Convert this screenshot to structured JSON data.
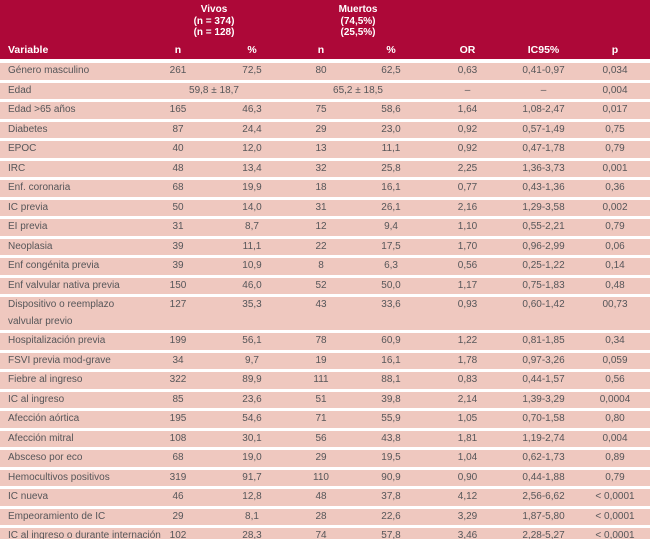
{
  "colors": {
    "header_bg": "#ad0838",
    "header_text": "#ffffff",
    "row_bg": "#efc8bf",
    "row_text": "#565659",
    "gap": "#ffffff"
  },
  "table": {
    "header": {
      "variable_label": "Variable",
      "group_vivos": "Vivos\n(n = 374)\n(n = 128)",
      "group_muertos": "Muertos\n(74,5%)\n(25,5%)",
      "col_n_vivos": "n",
      "col_pct_vivos": "%",
      "col_n_muertos": "n",
      "col_pct_muertos": "%",
      "col_or": "OR",
      "col_ic95": "IC95%",
      "col_p": "p"
    },
    "rows": [
      {
        "label": "Género masculino",
        "cells": [
          "261",
          "72,5",
          "80",
          "62,5",
          "0,63",
          "0,41-0,97",
          "0,034"
        ]
      },
      {
        "label": "Edad",
        "span": true,
        "cells": [
          "59,8 ± 18,7",
          "65,2 ± 18,5",
          "–",
          "–",
          "0,004"
        ]
      },
      {
        "label": "Edad >65 años",
        "cells": [
          "165",
          "46,3",
          "75",
          "58,6",
          "1,64",
          "1,08-2,47",
          "0,017"
        ]
      },
      {
        "label": "Diabetes",
        "cells": [
          "87",
          "24,4",
          "29",
          "23,0",
          "0,92",
          "0,57-1,49",
          "0,75"
        ]
      },
      {
        "label": "EPOC",
        "cells": [
          "40",
          "12,0",
          "13",
          "11,1",
          "0,92",
          "0,47-1,78",
          "0,79"
        ]
      },
      {
        "label": "IRC",
        "cells": [
          "48",
          "13,4",
          "32",
          "25,8",
          "2,25",
          "1,36-3,73",
          "0,001"
        ]
      },
      {
        "label": "Enf. coronaria",
        "cells": [
          "68",
          "19,9",
          "18",
          "16,1",
          "0,77",
          "0,43-1,36",
          "0,36"
        ]
      },
      {
        "label": "IC previa",
        "cells": [
          "50",
          "14,0",
          "31",
          "26,1",
          "2,16",
          "1,29-3,58",
          "0,002"
        ]
      },
      {
        "label": "EI previa",
        "cells": [
          "31",
          "8,7",
          "12",
          "9,4",
          "1,10",
          "0,55-2,21",
          "0,79"
        ]
      },
      {
        "label": "Neoplasia",
        "cells": [
          "39",
          "11,1",
          "22",
          "17,5",
          "1,70",
          "0,96-2,99",
          "0,06"
        ]
      },
      {
        "label": "Enf congénita previa",
        "cells": [
          "39",
          "10,9",
          "8",
          "6,3",
          "0,56",
          "0,25-1,22",
          "0,14"
        ]
      },
      {
        "label": "Enf valvular nativa previa",
        "cells": [
          "150",
          "46,0",
          "52",
          "50,0",
          "1,17",
          "0,75-1,83",
          "0,48"
        ]
      },
      {
        "label": "Dispositivo o reemplazo\nvalvular previo",
        "cells": [
          "127",
          "35,3",
          "43",
          "33,6",
          "0,93",
          "0,60-1,42",
          "00,73"
        ]
      },
      {
        "label": "Hospitalización previa",
        "cells": [
          "199",
          "56,1",
          "78",
          "60,9",
          "1,22",
          "0,81-1,85",
          "0,34"
        ]
      },
      {
        "label": "FSVI previa mod-grave",
        "cells": [
          "34",
          "9,7",
          "19",
          "16,1",
          "1,78",
          "0,97-3,26",
          "0,059"
        ]
      },
      {
        "label": "Fiebre al ingreso",
        "cells": [
          "322",
          "89,9",
          "111",
          "88,1",
          "0,83",
          "0,44-1,57",
          "0,56"
        ]
      },
      {
        "label": "IC al ingreso",
        "cells": [
          "85",
          "23,6",
          "51",
          "39,8",
          "2,14",
          "1,39-3,29",
          "0,0004"
        ]
      },
      {
        "label": "Afección aórtica",
        "cells": [
          "195",
          "54,6",
          "71",
          "55,9",
          "1,05",
          "0,70-1,58",
          "0,80"
        ]
      },
      {
        "label": "Afección mitral",
        "cells": [
          "108",
          "30,1",
          "56",
          "43,8",
          "1,81",
          "1,19-2,74",
          "0,004"
        ]
      },
      {
        "label": "Absceso por eco",
        "cells": [
          "68",
          "19,0",
          "29",
          "19,5",
          "1,04",
          "0,62-1,73",
          "0,89"
        ]
      },
      {
        "label": "Hemocultivos positivos",
        "cells": [
          "319",
          "91,7",
          "110",
          "90,9",
          "0,90",
          "0,44-1,88",
          "0,79"
        ]
      },
      {
        "label": "IC nueva",
        "cells": [
          "46",
          "12,8",
          "48",
          "37,8",
          "4,12",
          "2,56-6,62",
          "< 0,0001"
        ]
      },
      {
        "label": "Empeoramiento de IC",
        "cells": [
          "29",
          "8,1",
          "28",
          "22,6",
          "3,29",
          "1,87-5,80",
          "< 0,0001"
        ]
      },
      {
        "label": "IC al ingreso o durante internación",
        "cells": [
          "102",
          "28,3",
          "74",
          "57,8",
          "3,46",
          "2,28-5,27",
          "< 0,0001"
        ]
      }
    ]
  }
}
